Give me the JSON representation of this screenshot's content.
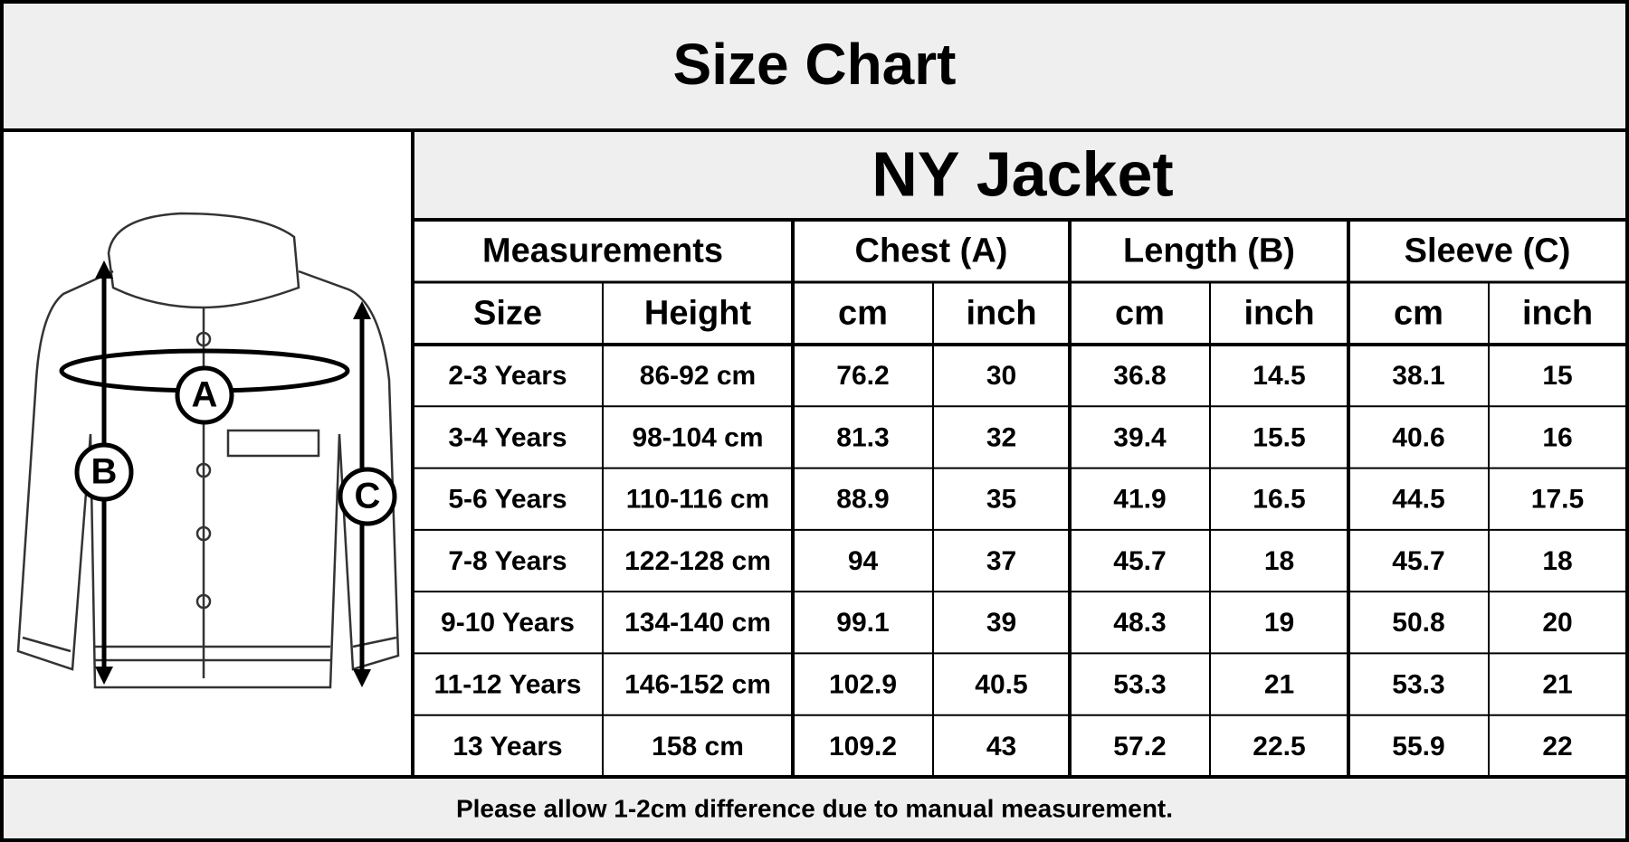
{
  "header": {
    "title": "Size Chart"
  },
  "product": "NY Jacket",
  "diagram": {
    "labels": [
      "A",
      "B",
      "C"
    ]
  },
  "table": {
    "groups": [
      "Measurements",
      "Chest (A)",
      "Length (B)",
      "Sleeve (C)"
    ],
    "columns": [
      "Size",
      "Height",
      "cm",
      "inch",
      "cm",
      "inch",
      "cm",
      "inch"
    ],
    "rows": [
      [
        "2-3 Years",
        "86-92 cm",
        "76.2",
        "30",
        "36.8",
        "14.5",
        "38.1",
        "15"
      ],
      [
        "3-4 Years",
        "98-104 cm",
        "81.3",
        "32",
        "39.4",
        "15.5",
        "40.6",
        "16"
      ],
      [
        "5-6 Years",
        "110-116 cm",
        "88.9",
        "35",
        "41.9",
        "16.5",
        "44.5",
        "17.5"
      ],
      [
        "7-8 Years",
        "122-128 cm",
        "94",
        "37",
        "45.7",
        "18",
        "45.7",
        "18"
      ],
      [
        "9-10 Years",
        "134-140 cm",
        "99.1",
        "39",
        "48.3",
        "19",
        "50.8",
        "20"
      ],
      [
        "11-12 Years",
        "146-152 cm",
        "102.9",
        "40.5",
        "53.3",
        "21",
        "53.3",
        "21"
      ],
      [
        "13 Years",
        "158 cm",
        "109.2",
        "43",
        "57.2",
        "22.5",
        "55.9",
        "22"
      ]
    ]
  },
  "footer": {
    "note": "Please allow 1-2cm difference due to manual measurement."
  }
}
